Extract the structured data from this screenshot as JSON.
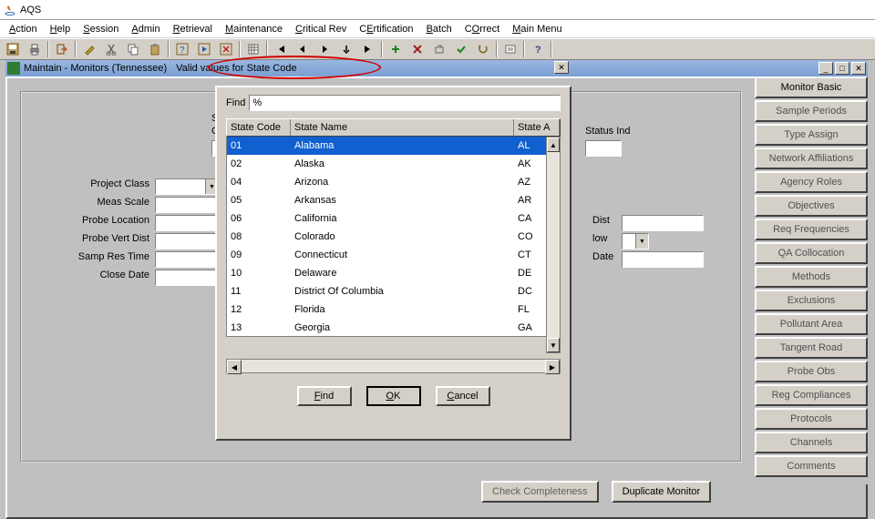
{
  "app": {
    "title": "AQS"
  },
  "menus": [
    {
      "pre": "",
      "ul": "A",
      "post": "ction"
    },
    {
      "pre": "",
      "ul": "H",
      "post": "elp"
    },
    {
      "pre": "",
      "ul": "S",
      "post": "ession"
    },
    {
      "pre": "",
      "ul": "A",
      "post": "dmin"
    },
    {
      "pre": "",
      "ul": "R",
      "post": "etrieval"
    },
    {
      "pre": "",
      "ul": "M",
      "post": "aintenance"
    },
    {
      "pre": "",
      "ul": "C",
      "post": "ritical Rev"
    },
    {
      "pre": "C",
      "ul": "E",
      "post": "rtification"
    },
    {
      "pre": "",
      "ul": "B",
      "post": "atch"
    },
    {
      "pre": "C",
      "ul": "O",
      "post": "rrect"
    },
    {
      "pre": "",
      "ul": "M",
      "post": "ain Menu"
    }
  ],
  "child_window": {
    "title_left": "Maintain - Monitors (Tennessee)",
    "dialog_title": "Valid values for State Code"
  },
  "form": {
    "labels": {
      "state": "State",
      "code": "Code",
      "status_ind": "Status Ind",
      "project_class": "Project Class",
      "meas_scale": "Meas Scale",
      "probe_location": "Probe Location",
      "probe_vert": "Probe Vert Dist",
      "samp_res": "Samp Res Time",
      "close_date": "Close Date",
      "dist": "Dist",
      "low": "low",
      "date": "Date"
    }
  },
  "side_buttons": [
    "Monitor Basic",
    "Sample Periods",
    "Type Assign",
    "Network Affiliations",
    "Agency Roles",
    "Objectives",
    "Req Frequencies",
    "QA Collocation",
    "Methods",
    "Exclusions",
    "Pollutant Area",
    "Tangent Road",
    "Probe Obs",
    "Reg Compliances",
    "Protocols",
    "Channels",
    "Comments"
  ],
  "bottom_buttons": {
    "check": "Check Completeness",
    "duplicate": "Duplicate Monitor"
  },
  "dialog": {
    "find_label": "Find",
    "find_value": "%",
    "columns": {
      "code": "State Code",
      "name": "State Name",
      "abbr": "State A"
    },
    "rows": [
      {
        "code": "01",
        "name": "Alabama",
        "abbr": "AL",
        "selected": true
      },
      {
        "code": "02",
        "name": "Alaska",
        "abbr": "AK"
      },
      {
        "code": "04",
        "name": "Arizona",
        "abbr": "AZ"
      },
      {
        "code": "05",
        "name": "Arkansas",
        "abbr": "AR"
      },
      {
        "code": "06",
        "name": "California",
        "abbr": "CA"
      },
      {
        "code": "08",
        "name": "Colorado",
        "abbr": "CO"
      },
      {
        "code": "09",
        "name": "Connecticut",
        "abbr": "CT"
      },
      {
        "code": "10",
        "name": "Delaware",
        "abbr": "DE"
      },
      {
        "code": "11",
        "name": "District Of Columbia",
        "abbr": "DC"
      },
      {
        "code": "12",
        "name": "Florida",
        "abbr": "FL"
      },
      {
        "code": "13",
        "name": "Georgia",
        "abbr": "GA"
      }
    ],
    "buttons": {
      "find": {
        "pre": "",
        "ul": "F",
        "post": "ind"
      },
      "ok": {
        "pre": "",
        "ul": "O",
        "post": "K"
      },
      "cancel": {
        "pre": "",
        "ul": "C",
        "post": "ancel"
      }
    }
  },
  "colors": {
    "selection_bg": "#1060d0",
    "selection_fg": "#ffffff",
    "titlebar_grad_top": "#9ab7de",
    "titlebar_grad_bot": "#7a9fd4",
    "annotation_red": "#d00000"
  }
}
